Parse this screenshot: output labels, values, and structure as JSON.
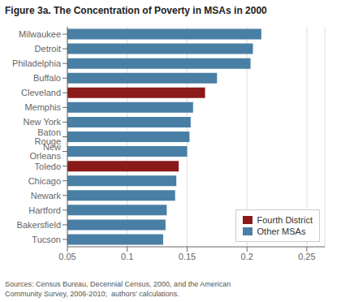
{
  "chart_data": {
    "type": "bar",
    "orientation": "horizontal",
    "stacked": true,
    "title": "Figure 3a. The Concentration of Poverty in MSAs in 2000",
    "annotations": [
      "Sources: Census Bureau, Decennial Census, 2000, and the American\nCommunity Survey, 2006-2010;  authors' calculations."
    ],
    "categories": [
      "Milwaukee",
      "Detroit",
      "Philadelphia",
      "Buffalo",
      "Cleveland",
      "Memphis",
      "New York",
      "Baton Rouge",
      "New Orleans",
      "Toledo",
      "Chicago",
      "Newark",
      "Hartford",
      "Bakersfield",
      "Tucson"
    ],
    "series": [
      {
        "name": "Fourth District",
        "color": "#8b1a1a",
        "values": [
          null,
          null,
          null,
          null,
          0.165,
          null,
          null,
          null,
          null,
          0.143,
          null,
          null,
          null,
          null,
          null
        ]
      },
      {
        "name": "Other MSAs",
        "color": "#4a7fa5",
        "values": [
          0.212,
          0.205,
          0.203,
          0.175,
          null,
          0.155,
          0.153,
          0.152,
          0.15,
          null,
          0.141,
          0.14,
          0.133,
          0.132,
          0.13
        ]
      }
    ],
    "xlim": [
      0.05,
      0.265
    ],
    "xticks": [
      0.05,
      0.1,
      0.15,
      0.2,
      0.25
    ],
    "grid": true,
    "legend": "lower right"
  }
}
